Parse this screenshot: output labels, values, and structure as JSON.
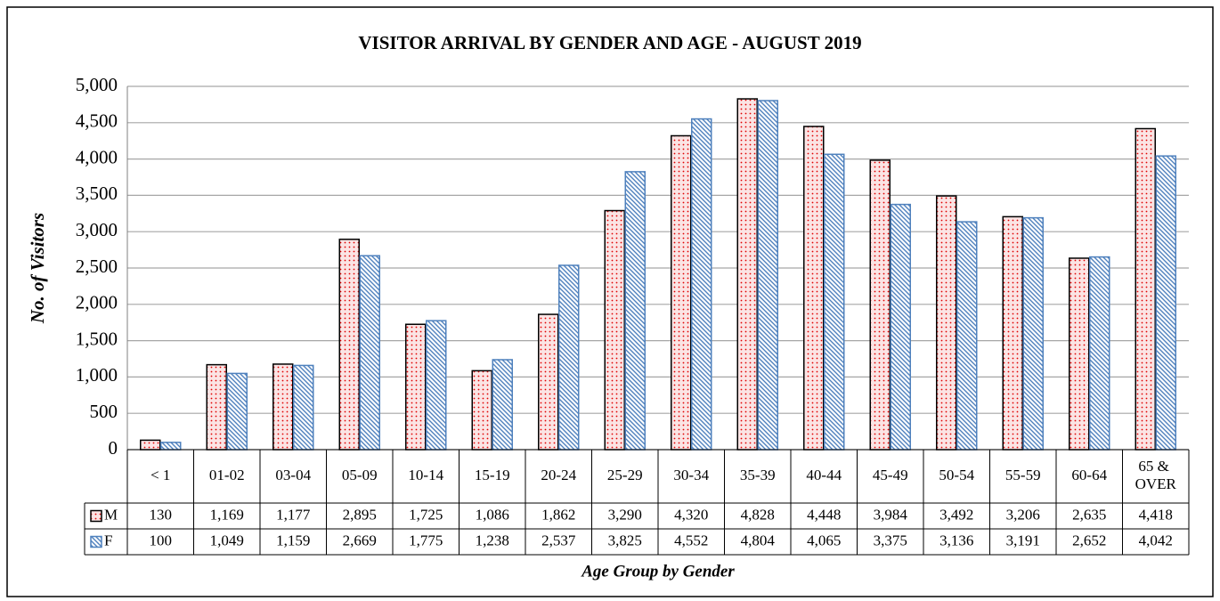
{
  "chart_data": {
    "type": "bar",
    "title": "VISITOR ARRIVAL BY GENDER AND AGE - AUGUST 2019",
    "y_label": "No. of Visitors",
    "x_label": "Age Group by Gender",
    "categories": [
      "< 1",
      "01-02",
      "03-04",
      "05-09",
      "10-14",
      "15-19",
      "20-24",
      "25-29",
      "30-34",
      "35-39",
      "40-44",
      "45-49",
      "50-54",
      "55-59",
      "60-64",
      "65 & OVER"
    ],
    "series": [
      {
        "name": "M",
        "color": "#e00000",
        "edgecolor": "#000000",
        "values": [
          130,
          1169,
          1177,
          2895,
          1725,
          1086,
          1862,
          3290,
          4320,
          4828,
          4448,
          3984,
          3492,
          3206,
          2635,
          4418
        ],
        "value_labels": [
          "130",
          "1,169",
          "1,177",
          "2,895",
          "1,725",
          "1,086",
          "1,862",
          "3,290",
          "4,320",
          "4,828",
          "4,448",
          "3,984",
          "3,492",
          "3,206",
          "2,635",
          "4,418"
        ]
      },
      {
        "name": "F",
        "color": "#4f81bd",
        "edgecolor": "#4f81bd",
        "values": [
          100,
          1049,
          1159,
          2669,
          1775,
          1238,
          2537,
          3825,
          4552,
          4804,
          4065,
          3375,
          3136,
          3191,
          2652,
          4042
        ],
        "value_labels": [
          "100",
          "1,049",
          "1,159",
          "2,669",
          "1,775",
          "1,238",
          "2,537",
          "3,825",
          "4,552",
          "4,804",
          "4,065",
          "3,375",
          "3,136",
          "3,191",
          "2,652",
          "4,042"
        ]
      }
    ],
    "ylim": [
      0,
      5000
    ],
    "yticks": [
      0,
      500,
      {
        "value": 1000,
        "label": "1,000"
      },
      {
        "value": 1500,
        "label": "1,500"
      },
      {
        "value": 2000,
        "label": "2,000"
      },
      {
        "value": 2500,
        "label": "2,500"
      },
      {
        "value": 3000,
        "label": "3,000"
      },
      {
        "value": 3500,
        "label": "3,500"
      },
      {
        "value": 4000,
        "label": "4,000"
      },
      {
        "value": 4500,
        "label": "4,500"
      },
      {
        "value": 5000,
        "label": "5,000"
      }
    ],
    "grid": true
  }
}
